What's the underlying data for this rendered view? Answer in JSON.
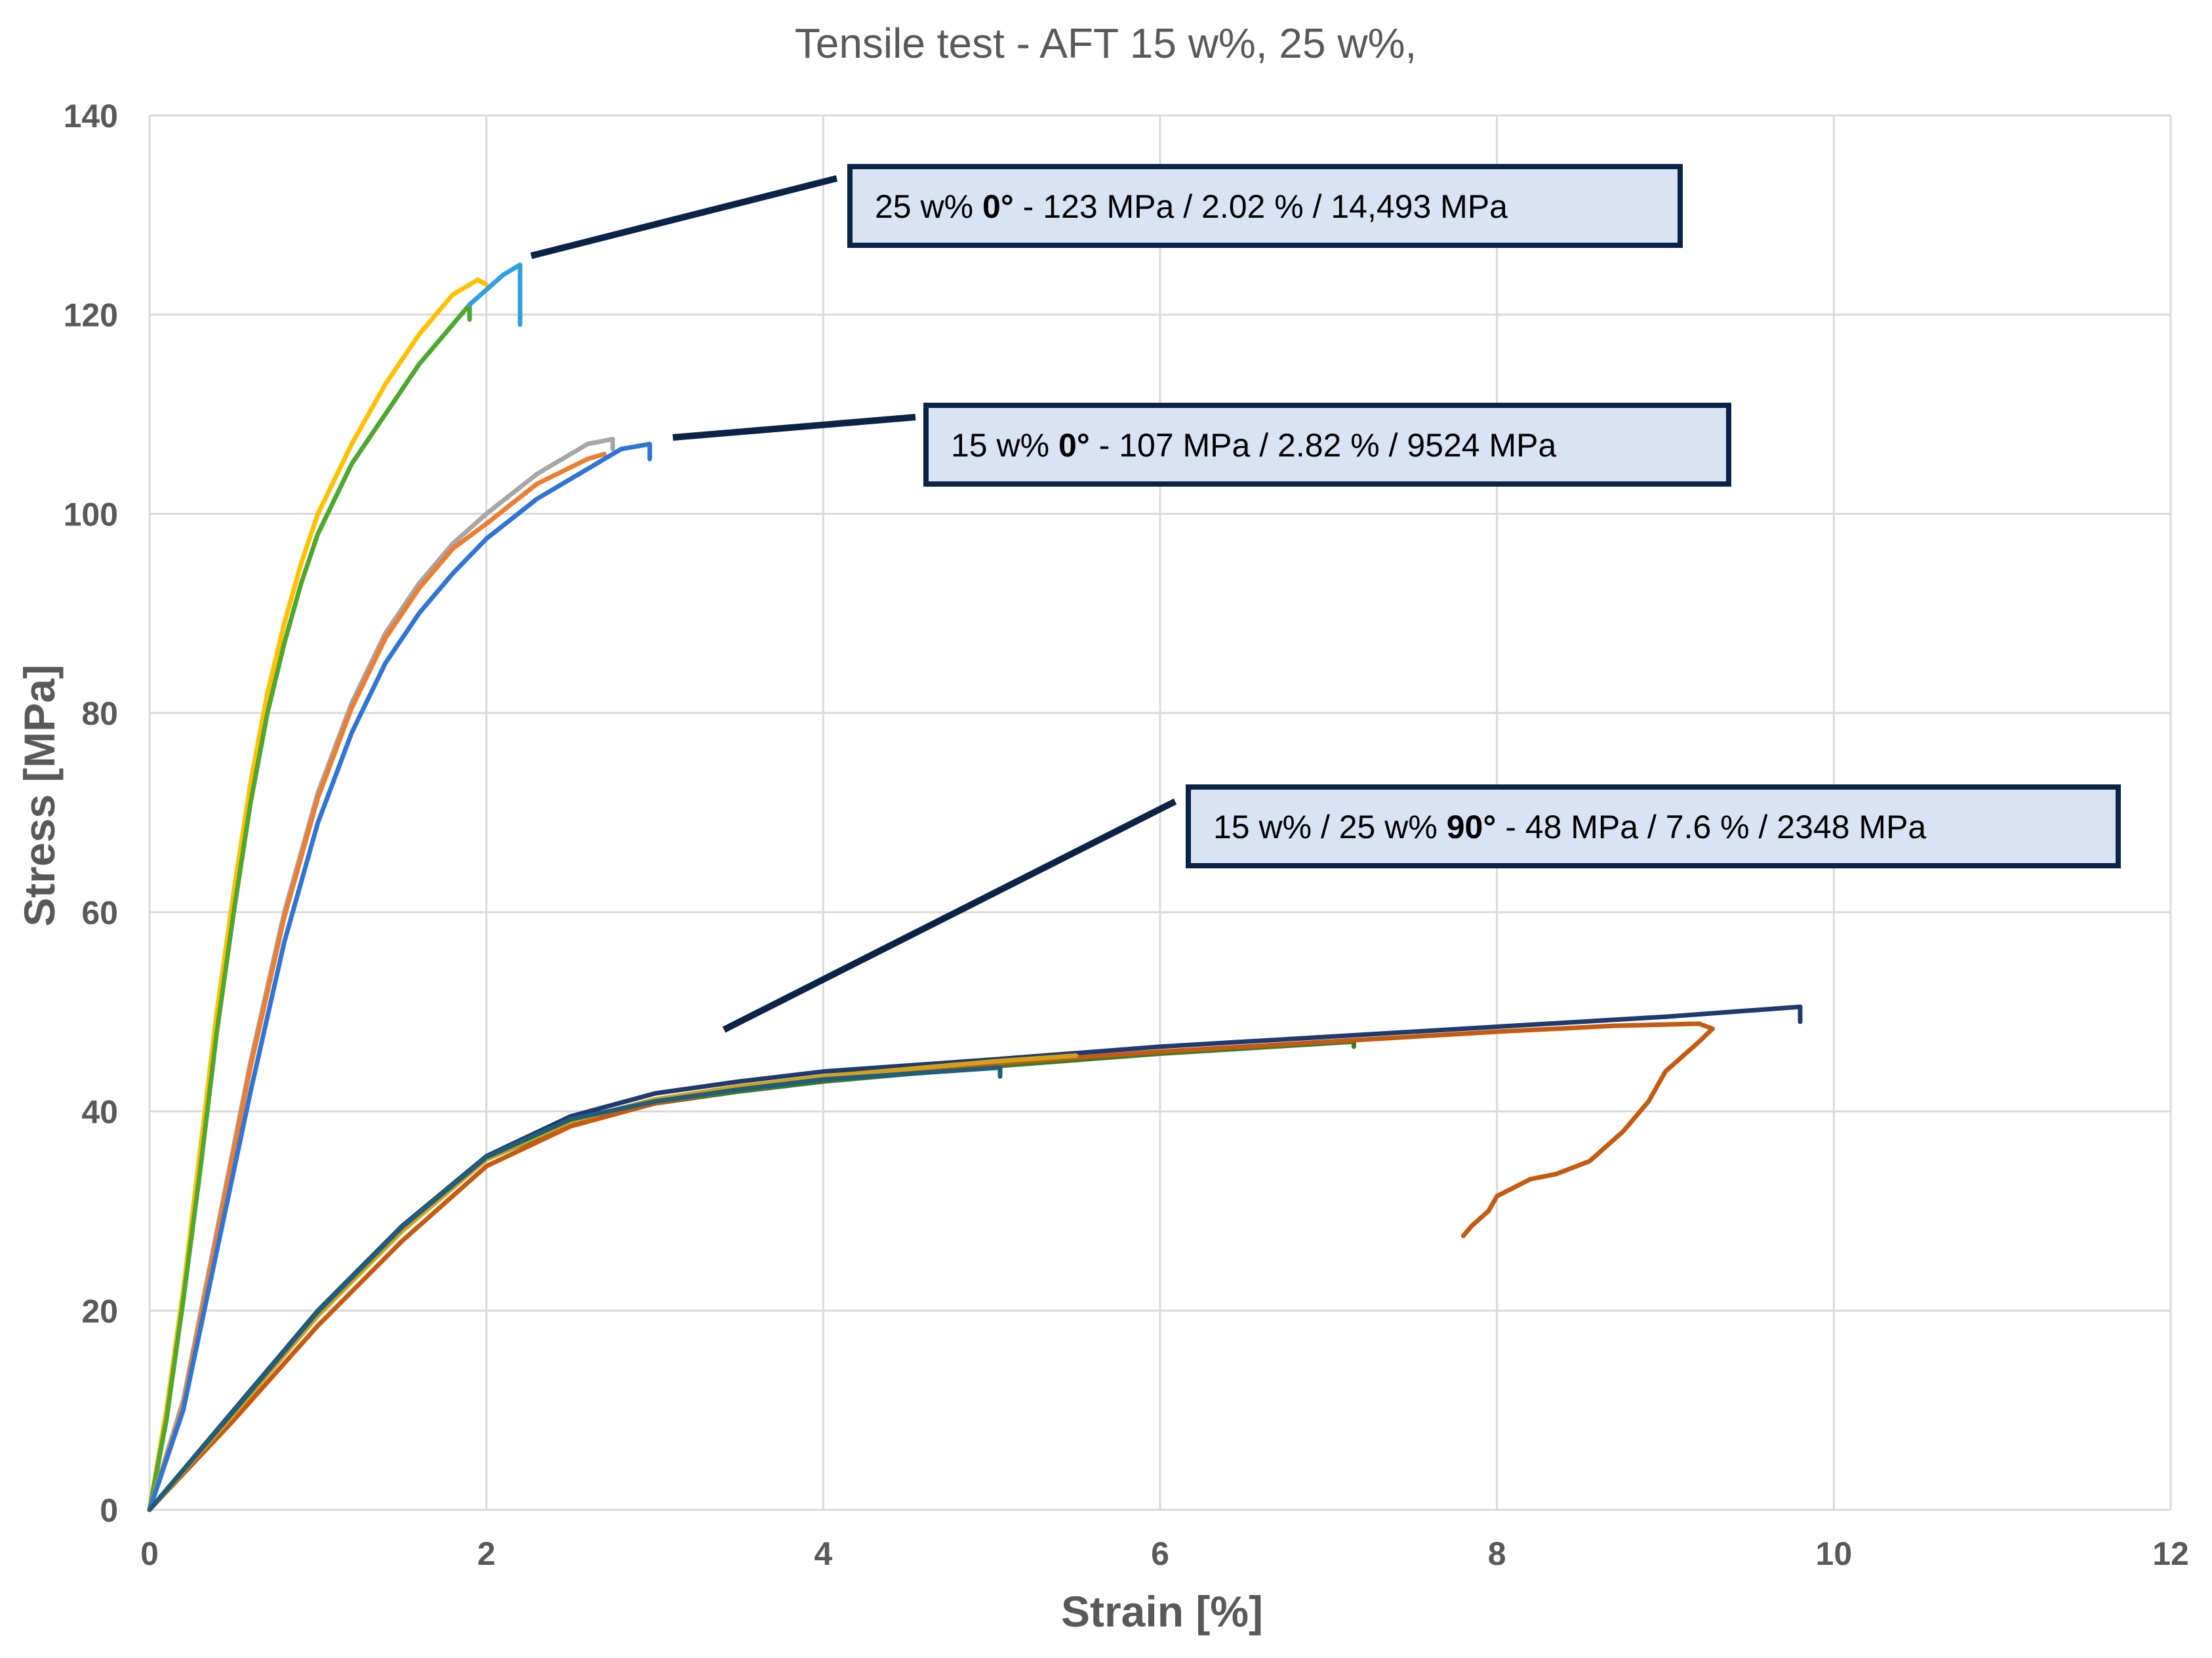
{
  "chart_data": {
    "type": "line",
    "title": "Tensile test - AFT 15 w%, 25 w%,",
    "xlabel": "Strain [%]",
    "ylabel": "Stress [MPa]",
    "xlim": [
      0,
      12
    ],
    "ylim": [
      0,
      140
    ],
    "x_ticks": [
      "0",
      "2",
      "4",
      "6",
      "8",
      "10",
      "12"
    ],
    "y_ticks": [
      "0",
      "20",
      "40",
      "60",
      "80",
      "100",
      "120",
      "140"
    ],
    "grid": true,
    "legend": "none",
    "colors": {
      "yellow": "#ffc000",
      "green": "#4ea72e",
      "light_blue": "#2e9fe0",
      "gray": "#a6a6a6",
      "orange": "#ed7d31",
      "blue": "#2e75d6",
      "navy": "#1f3a6e",
      "dark_green": "#3a7d2a",
      "brown": "#c55a11",
      "gold": "#d4a017",
      "teal": "#1f5f7a"
    },
    "series": [
      {
        "color": "#ffc000",
        "points": [
          [
            0,
            0
          ],
          [
            0.1,
            10
          ],
          [
            0.2,
            22
          ],
          [
            0.3,
            36
          ],
          [
            0.4,
            50
          ],
          [
            0.5,
            62
          ],
          [
            0.6,
            73
          ],
          [
            0.7,
            82
          ],
          [
            0.8,
            89
          ],
          [
            0.9,
            95
          ],
          [
            1.0,
            100
          ],
          [
            1.2,
            107
          ],
          [
            1.4,
            113
          ],
          [
            1.6,
            118
          ],
          [
            1.8,
            122
          ],
          [
            1.95,
            123.5
          ],
          [
            2.0,
            123
          ]
        ]
      },
      {
        "color": "#4ea72e",
        "points": [
          [
            0,
            0
          ],
          [
            0.1,
            9
          ],
          [
            0.2,
            21
          ],
          [
            0.3,
            34
          ],
          [
            0.4,
            48
          ],
          [
            0.5,
            60
          ],
          [
            0.6,
            71
          ],
          [
            0.7,
            80
          ],
          [
            0.8,
            87
          ],
          [
            0.9,
            93
          ],
          [
            1.0,
            98
          ],
          [
            1.2,
            105
          ],
          [
            1.4,
            110
          ],
          [
            1.6,
            115
          ],
          [
            1.8,
            119
          ],
          [
            1.9,
            121
          ],
          [
            1.9,
            119.5
          ]
        ]
      },
      {
        "color": "#2e9fe0",
        "points": [
          [
            1.9,
            121
          ],
          [
            2.0,
            122.5
          ],
          [
            2.1,
            124
          ],
          [
            2.2,
            125
          ],
          [
            2.2,
            119
          ]
        ]
      },
      {
        "color": "#a6a6a6",
        "points": [
          [
            0,
            0
          ],
          [
            0.2,
            11
          ],
          [
            0.4,
            28
          ],
          [
            0.6,
            45
          ],
          [
            0.8,
            60
          ],
          [
            1.0,
            72
          ],
          [
            1.2,
            81
          ],
          [
            1.4,
            88
          ],
          [
            1.6,
            93
          ],
          [
            1.8,
            97
          ],
          [
            2.0,
            100
          ],
          [
            2.3,
            104
          ],
          [
            2.6,
            107
          ],
          [
            2.75,
            107.5
          ],
          [
            2.75,
            106.5
          ]
        ]
      },
      {
        "color": "#ed7d31",
        "points": [
          [
            0,
            0
          ],
          [
            0.2,
            10.5
          ],
          [
            0.4,
            27.5
          ],
          [
            0.6,
            44.5
          ],
          [
            0.8,
            59.5
          ],
          [
            1.0,
            71.5
          ],
          [
            1.2,
            80.5
          ],
          [
            1.4,
            87.5
          ],
          [
            1.6,
            92.5
          ],
          [
            1.8,
            96.5
          ],
          [
            2.0,
            99
          ],
          [
            2.3,
            103
          ],
          [
            2.6,
            105.5
          ],
          [
            2.7,
            106
          ]
        ]
      },
      {
        "color": "#2e75d6",
        "points": [
          [
            0,
            0
          ],
          [
            0.2,
            10
          ],
          [
            0.4,
            26
          ],
          [
            0.6,
            42
          ],
          [
            0.8,
            57
          ],
          [
            1.0,
            69
          ],
          [
            1.2,
            78
          ],
          [
            1.4,
            85
          ],
          [
            1.6,
            90
          ],
          [
            1.8,
            94
          ],
          [
            2.0,
            97.5
          ],
          [
            2.3,
            101.5
          ],
          [
            2.6,
            104.5
          ],
          [
            2.8,
            106.5
          ],
          [
            2.97,
            107
          ],
          [
            2.97,
            105.5
          ]
        ]
      },
      {
        "color": "#1f3a6e",
        "points": [
          [
            0,
            0
          ],
          [
            0.5,
            10
          ],
          [
            1.0,
            20
          ],
          [
            1.5,
            28.5
          ],
          [
            2.0,
            35.5
          ],
          [
            2.5,
            39.5
          ],
          [
            3.0,
            41.8
          ],
          [
            3.5,
            43
          ],
          [
            4.0,
            44
          ],
          [
            5.0,
            45.2
          ],
          [
            6.0,
            46.5
          ],
          [
            7.0,
            47.5
          ],
          [
            8.0,
            48.5
          ],
          [
            9.0,
            49.5
          ],
          [
            9.8,
            50.5
          ],
          [
            9.8,
            49
          ]
        ]
      },
      {
        "color": "#3a7d2a",
        "points": [
          [
            0,
            0
          ],
          [
            0.5,
            9.8
          ],
          [
            1.0,
            19.8
          ],
          [
            1.5,
            28.2
          ],
          [
            2.0,
            35.2
          ],
          [
            2.5,
            38.8
          ],
          [
            3.0,
            40.8
          ],
          [
            3.5,
            42
          ],
          [
            4.0,
            43
          ],
          [
            5.0,
            44.5
          ],
          [
            6.0,
            45.8
          ],
          [
            7.15,
            47
          ],
          [
            7.15,
            46.5
          ]
        ]
      },
      {
        "color": "#c55a11",
        "points": [
          [
            0,
            0
          ],
          [
            0.5,
            9
          ],
          [
            1.0,
            18.5
          ],
          [
            1.5,
            27
          ],
          [
            2.0,
            34.5
          ],
          [
            2.5,
            38.5
          ],
          [
            3.0,
            40.8
          ],
          [
            3.5,
            42.2
          ],
          [
            4.0,
            43.2
          ],
          [
            5.0,
            44.8
          ],
          [
            6.0,
            46
          ],
          [
            7.0,
            47
          ],
          [
            8.0,
            48
          ],
          [
            8.7,
            48.6
          ],
          [
            9.2,
            48.8
          ],
          [
            9.28,
            48.3
          ],
          [
            9.2,
            47
          ],
          [
            9.0,
            44
          ],
          [
            8.9,
            41
          ],
          [
            8.75,
            38
          ],
          [
            8.55,
            35
          ],
          [
            8.35,
            33.7
          ],
          [
            8.2,
            33.2
          ],
          [
            8.0,
            31.5
          ],
          [
            7.95,
            30
          ],
          [
            7.85,
            28.5
          ],
          [
            7.8,
            27.5
          ]
        ]
      },
      {
        "color": "#d4a017",
        "points": [
          [
            0,
            0
          ],
          [
            0.5,
            9.6
          ],
          [
            1.0,
            19.5
          ],
          [
            1.5,
            28
          ],
          [
            2.0,
            35.2
          ],
          [
            2.5,
            39
          ],
          [
            3.0,
            41.2
          ],
          [
            3.5,
            42.5
          ],
          [
            4.0,
            43.5
          ],
          [
            5.0,
            45
          ],
          [
            5.5,
            45.6
          ]
        ]
      },
      {
        "color": "#1f5f7a",
        "points": [
          [
            0,
            0
          ],
          [
            0.5,
            9.9
          ],
          [
            1.0,
            19.9
          ],
          [
            1.5,
            28.4
          ],
          [
            2.0,
            35.4
          ],
          [
            2.5,
            39.2
          ],
          [
            3.0,
            41
          ],
          [
            3.5,
            42.2
          ],
          [
            4.0,
            43.2
          ],
          [
            5.05,
            44.4
          ],
          [
            5.05,
            43.5
          ]
        ]
      }
    ],
    "annotations": [
      {
        "label_pre": "25 w% ",
        "label_bold": "0°",
        "label_post": " - 123 MPa / 2.02 % / 14,493 MPa"
      },
      {
        "label_pre": "15 w% ",
        "label_bold": "0°",
        "label_post": " - 107 MPa / 2.82 % / 9524 MPa"
      },
      {
        "label_pre": "15 w% / 25 w% ",
        "label_bold": "90°",
        "label_post": " - 48 MPa / 7.6 % / 2348 MPa"
      }
    ]
  }
}
